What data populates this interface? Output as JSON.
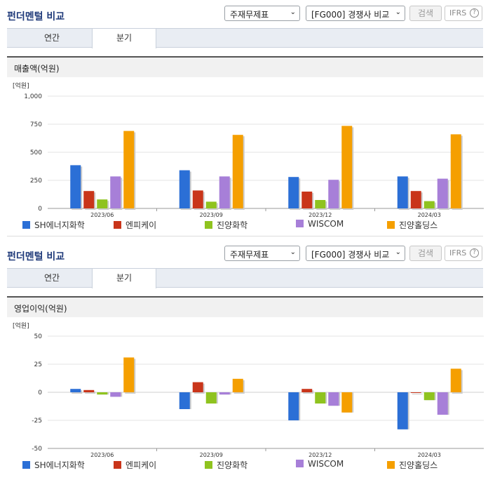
{
  "common": {
    "title": "펀더멘털 비교",
    "select_statement": "주재무제표",
    "select_compare": "[FG000] 경쟁사 비교",
    "search_label": "검색",
    "ifrs_label": "IFRS",
    "help_glyph": "?",
    "tab_annual": "연간",
    "tab_quarter": "분기",
    "dropdown_arrow": "⌄"
  },
  "colors": {
    "series": [
      "#2b6fd6",
      "#c9351a",
      "#8fc31f",
      "#a77fd8",
      "#f59f00"
    ],
    "title": "#1f3a7a"
  },
  "panels": [
    {
      "metric_label": "매출액(억원)",
      "active_tab": "분기"
    },
    {
      "metric_label": "영업이익(억원)",
      "active_tab": "분기"
    }
  ],
  "chart_data": [
    {
      "type": "bar",
      "ylabel": "[억원]",
      "categories": [
        "2023/06",
        "2023/09",
        "2023/12",
        "2024/03"
      ],
      "ylim": [
        0,
        1000
      ],
      "yticks": [
        0,
        250,
        500,
        750,
        1000
      ],
      "ytick_labels": [
        "0",
        "250",
        "500",
        "750",
        "1,000"
      ],
      "grid": true,
      "legend": "bottom",
      "series": [
        {
          "name": "SH에너지화학",
          "values": [
            385,
            340,
            280,
            285
          ]
        },
        {
          "name": "엔피케이",
          "values": [
            155,
            160,
            150,
            155
          ]
        },
        {
          "name": "진양화학",
          "values": [
            80,
            60,
            75,
            65
          ]
        },
        {
          "name": "WISCOM",
          "values": [
            285,
            285,
            255,
            265
          ]
        },
        {
          "name": "진양홀딩스",
          "values": [
            690,
            655,
            735,
            660
          ]
        }
      ]
    },
    {
      "type": "bar",
      "ylabel": "[억원]",
      "categories": [
        "2023/06",
        "2023/09",
        "2023/12",
        "2024/03"
      ],
      "ylim": [
        -50,
        50
      ],
      "yticks": [
        -50,
        -25,
        0,
        25,
        50
      ],
      "ytick_labels": [
        "-50",
        "-25",
        "0",
        "25",
        "50"
      ],
      "grid": true,
      "legend": "bottom",
      "series": [
        {
          "name": "SH에너지화학",
          "values": [
            3,
            -15,
            -25,
            -33
          ]
        },
        {
          "name": "엔피케이",
          "values": [
            2,
            9,
            3,
            0
          ]
        },
        {
          "name": "진양화학",
          "values": [
            -2,
            -10,
            -10,
            -7
          ]
        },
        {
          "name": "WISCOM",
          "values": [
            -4,
            -2,
            -12,
            -20
          ]
        },
        {
          "name": "진양홀딩스",
          "values": [
            31,
            12,
            -18,
            21
          ]
        }
      ]
    }
  ]
}
